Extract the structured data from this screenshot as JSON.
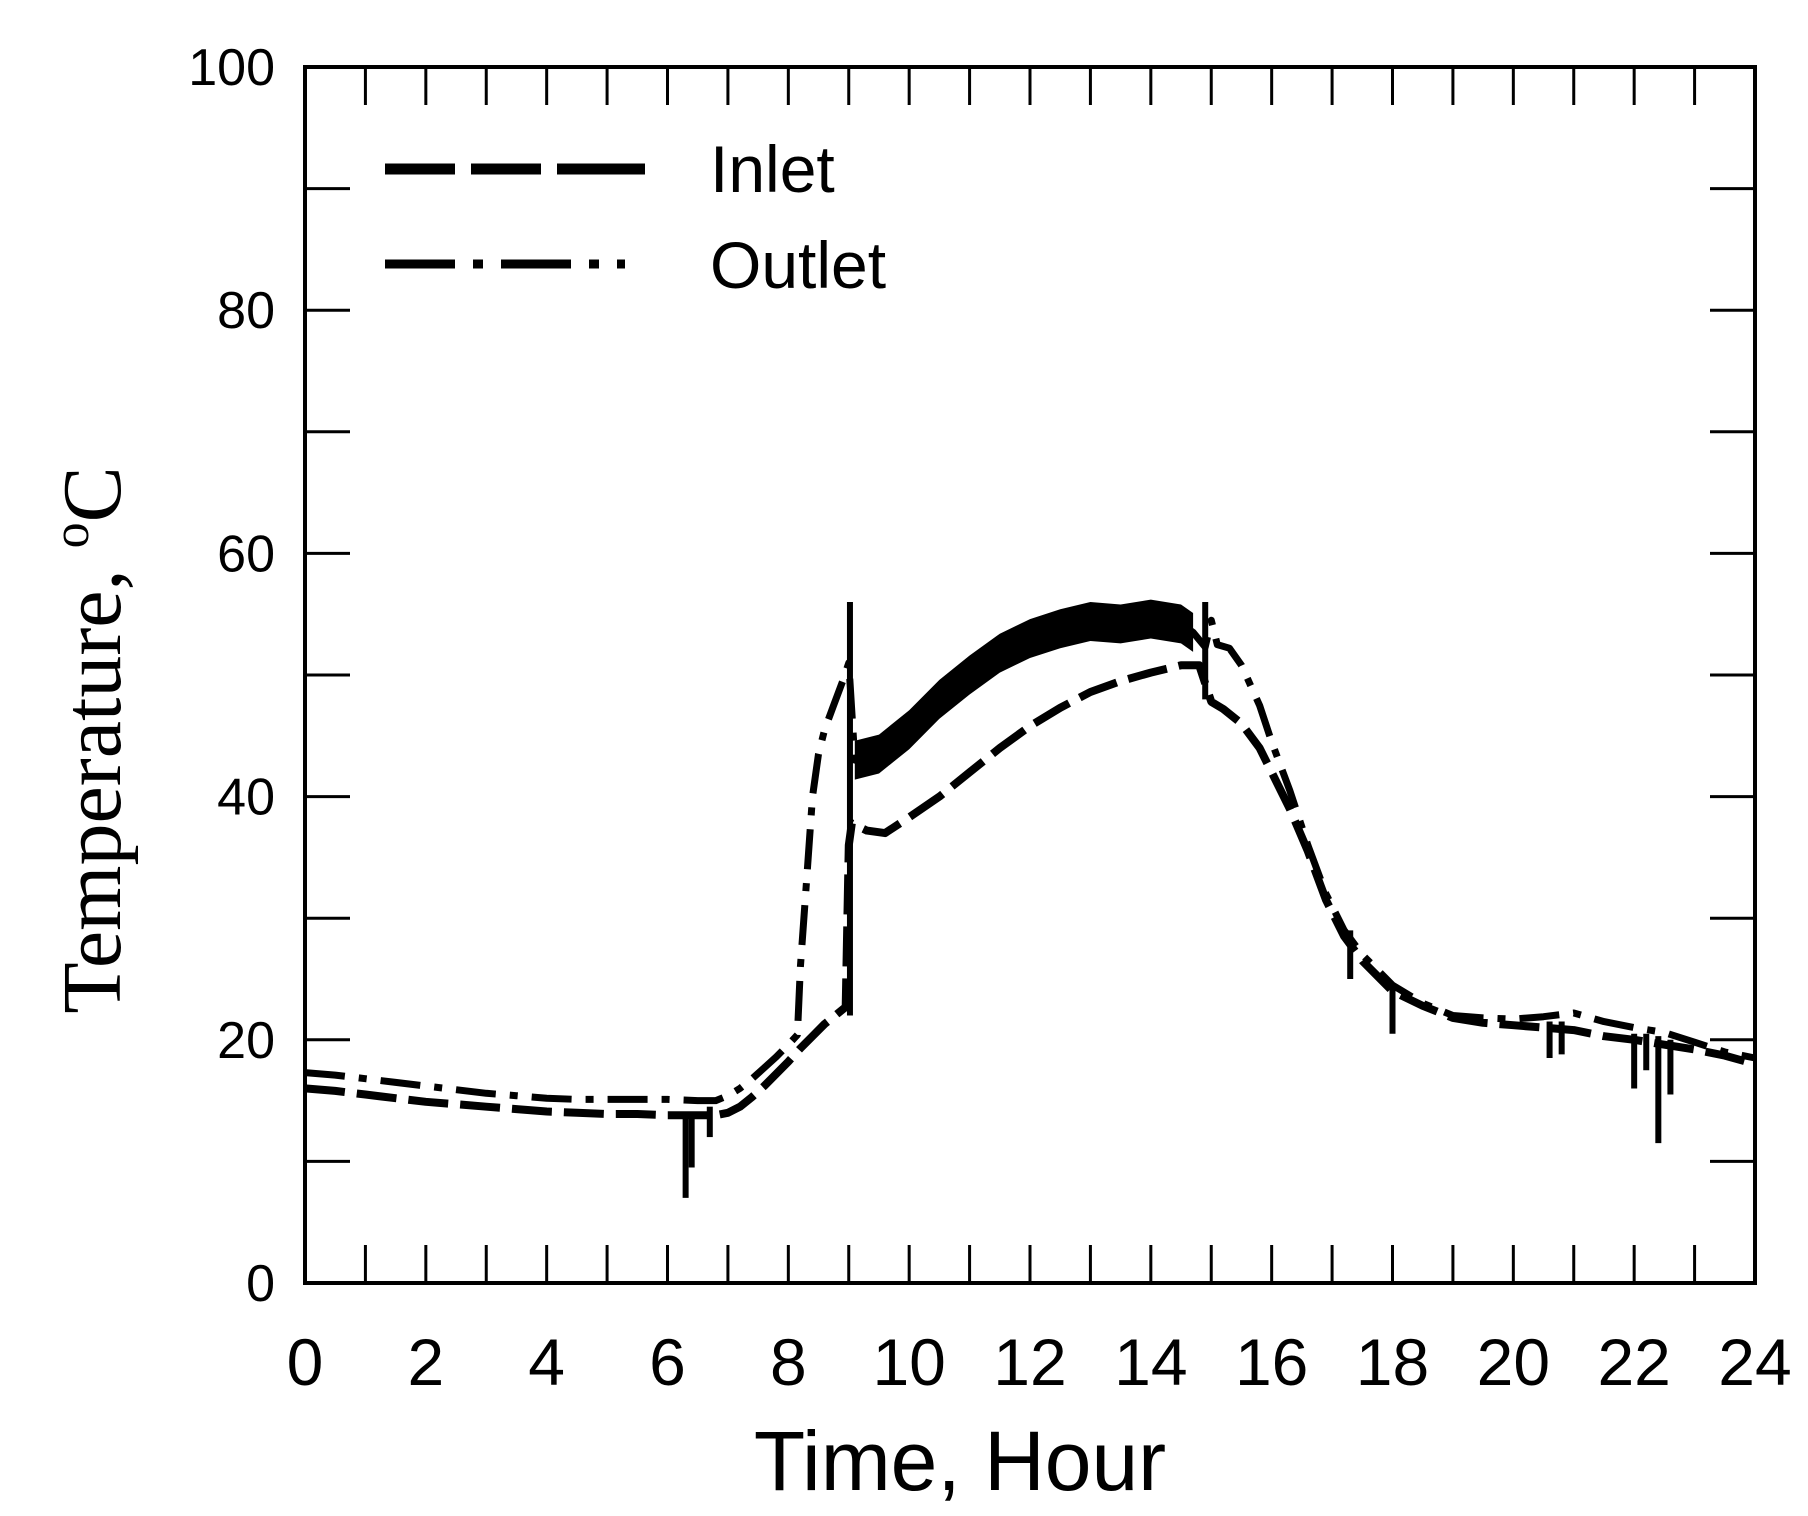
{
  "chart_data": {
    "type": "line",
    "title": "",
    "xlabel": "Time, Hour",
    "ylabel": "Temperature, ",
    "ylabel_unit": "C",
    "ylabel_superscript": "o",
    "xlim": [
      0,
      24
    ],
    "ylim": [
      0,
      100
    ],
    "x_ticks_major": [
      "0",
      "2",
      "4",
      "6",
      "8",
      "10",
      "12",
      "14",
      "16",
      "18",
      "20",
      "22",
      "24"
    ],
    "y_ticks_major": [
      "0",
      "20",
      "40",
      "60",
      "80",
      "100"
    ],
    "x_minor_step": 1,
    "y_minor_step": 10,
    "grid": false,
    "legend_placement": "top-left",
    "series": [
      {
        "name": "Inlet",
        "style": "dashed",
        "color": "#000000",
        "x": [
          0,
          0.5,
          1,
          1.5,
          2,
          2.5,
          3,
          3.5,
          4,
          4.5,
          5,
          5.5,
          6,
          6.5,
          6.8,
          7.0,
          7.2,
          7.4,
          7.6,
          7.8,
          8.0,
          8.2,
          8.4,
          8.6,
          8.8,
          8.95,
          9.0,
          9.05,
          9.3,
          9.6,
          10,
          10.5,
          11,
          11.5,
          12,
          12.5,
          13,
          13.5,
          14,
          14.5,
          14.8,
          15.0,
          15.2,
          15.5,
          15.8,
          16.0,
          16.3,
          16.6,
          16.9,
          17.2,
          17.5,
          17.8,
          18.0,
          18.5,
          19.0,
          19.5,
          20.0,
          20.5,
          21.0,
          21.5,
          22.0,
          22.5,
          23.0,
          23.5,
          24.0
        ],
        "y": [
          16.0,
          15.8,
          15.5,
          15.2,
          14.9,
          14.7,
          14.5,
          14.3,
          14.1,
          14.0,
          13.9,
          13.9,
          13.8,
          13.8,
          13.8,
          14.0,
          14.5,
          15.3,
          16.2,
          17.2,
          18.2,
          19.3,
          20.3,
          21.3,
          22.1,
          22.7,
          36.0,
          37.8,
          37.2,
          37.0,
          38.3,
          40.0,
          42.0,
          44.0,
          45.8,
          47.3,
          48.6,
          49.5,
          50.2,
          50.8,
          50.8,
          47.8,
          47.2,
          46.0,
          44.0,
          42.0,
          39.0,
          35.5,
          31.5,
          28.5,
          26.5,
          25.0,
          24.0,
          22.8,
          21.8,
          21.4,
          21.2,
          21.0,
          20.8,
          20.3,
          20.0,
          19.6,
          19.2,
          18.7,
          18.0
        ]
      },
      {
        "name": "Outlet",
        "style": "dash-dot",
        "color": "#000000",
        "x": [
          0,
          0.5,
          1,
          1.5,
          2,
          2.5,
          3,
          3.5,
          4,
          4.5,
          5,
          5.5,
          6,
          6.5,
          6.8,
          7.0,
          7.2,
          7.4,
          7.6,
          7.8,
          8.0,
          8.15,
          8.2,
          8.3,
          8.4,
          8.5,
          8.6,
          8.75,
          8.9,
          9.0,
          9.1,
          9.5,
          10,
          10.5,
          11,
          11.5,
          12,
          12.5,
          13,
          13.5,
          14,
          14.5,
          14.7,
          14.9,
          15.0,
          15.1,
          15.3,
          15.5,
          15.8,
          16.0,
          16.3,
          16.6,
          16.9,
          17.2,
          17.5,
          17.8,
          18.0,
          18.5,
          19.0,
          19.5,
          20.0,
          20.5,
          21.0,
          21.5,
          22.0,
          22.5,
          23.0,
          23.5,
          24.0
        ],
        "y": [
          17.3,
          17.1,
          16.8,
          16.5,
          16.2,
          15.9,
          15.6,
          15.4,
          15.2,
          15.1,
          15.1,
          15.1,
          15.1,
          15.0,
          15.0,
          15.4,
          16.0,
          16.8,
          17.7,
          18.6,
          19.6,
          20.4,
          26.0,
          33.0,
          40.0,
          43.5,
          45.5,
          47.5,
          49.5,
          51.0,
          43.0,
          43.5,
          45.5,
          48.0,
          50.0,
          51.8,
          53.0,
          53.8,
          54.4,
          54.2,
          54.6,
          54.2,
          53.5,
          52.3,
          54.5,
          52.5,
          52.2,
          50.8,
          47.5,
          44.5,
          40.5,
          36.0,
          32.0,
          29.0,
          27.0,
          25.5,
          24.5,
          23.0,
          22.0,
          21.8,
          21.7,
          21.9,
          22.2,
          21.5,
          21.0,
          20.6,
          19.8,
          19.0,
          18.5
        ]
      }
    ],
    "spikes": [
      {
        "x": 6.3,
        "from": 14.0,
        "to": 7.0
      },
      {
        "x": 6.4,
        "from": 14.0,
        "to": 9.5
      },
      {
        "x": 6.7,
        "from": 14.5,
        "to": 12.0
      },
      {
        "x": 9.02,
        "from": 22.0,
        "to": 56.0
      },
      {
        "x": 14.9,
        "from": 48.0,
        "to": 56.0
      },
      {
        "x": 17.3,
        "from": 29.0,
        "to": 25.0
      },
      {
        "x": 18.0,
        "from": 24.5,
        "to": 20.5
      },
      {
        "x": 20.6,
        "from": 21.5,
        "to": 18.5
      },
      {
        "x": 20.8,
        "from": 21.5,
        "to": 18.8
      },
      {
        "x": 22.0,
        "from": 20.5,
        "to": 16.0
      },
      {
        "x": 22.2,
        "from": 20.5,
        "to": 17.5
      },
      {
        "x": 22.4,
        "from": 20.3,
        "to": 11.5
      },
      {
        "x": 22.6,
        "from": 20.0,
        "to": 15.5
      }
    ]
  }
}
